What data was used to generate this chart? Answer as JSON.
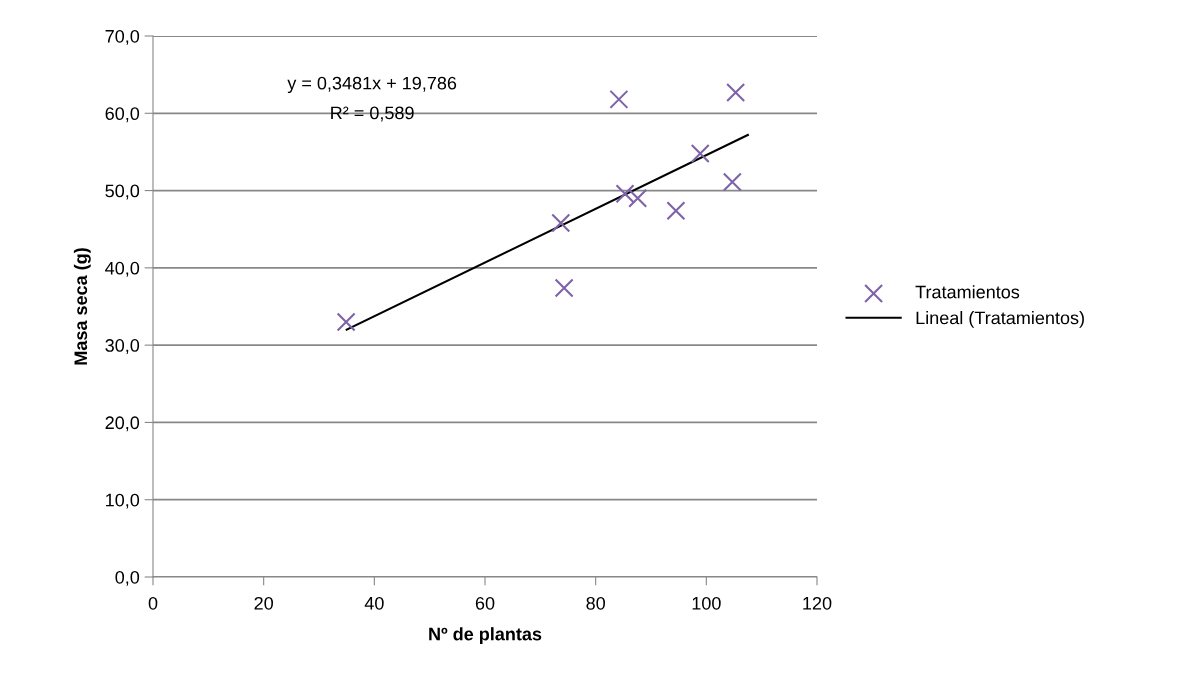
{
  "chart_data": {
    "type": "scatter",
    "xlabel": "Nº de plantas",
    "ylabel": "Masa seca (g)",
    "xlim": [
      0,
      120
    ],
    "xticks": [
      0,
      20,
      40,
      60,
      80,
      100,
      120
    ],
    "ylim": [
      0,
      70
    ],
    "yticks": [
      {
        "value": 0,
        "label": "0,0"
      },
      {
        "value": 10,
        "label": "10,0"
      },
      {
        "value": 20,
        "label": "20,0"
      },
      {
        "value": 30,
        "label": "30,0"
      },
      {
        "value": 40,
        "label": "40,0"
      },
      {
        "value": 50,
        "label": "50,0"
      },
      {
        "value": 60,
        "label": "60,0"
      },
      {
        "value": 70,
        "label": "70,0"
      }
    ],
    "grid": "y",
    "legend": "right",
    "annotations": [
      "y = 0,3481x + 19,786",
      "R² = 0,589"
    ],
    "series": [
      {
        "name": "Tratamientos",
        "marker": "cross",
        "color": "#7f63a8",
        "x": [
          34.9,
          73.7,
          74.3,
          84.2,
          85.3,
          87.6,
          94.5,
          98.9,
          104.7,
          105.3
        ],
        "values": [
          33.0,
          45.8,
          37.4,
          61.8,
          49.6,
          49.0,
          47.4,
          54.8,
          51.1,
          62.7
        ]
      },
      {
        "name": "Lineal (Tratamientos)",
        "type": "line",
        "marker": "none",
        "line_style": "solid",
        "color": "#000000",
        "x": [
          35,
          107.5
        ],
        "values": [
          32.0,
          57.2
        ]
      }
    ]
  }
}
